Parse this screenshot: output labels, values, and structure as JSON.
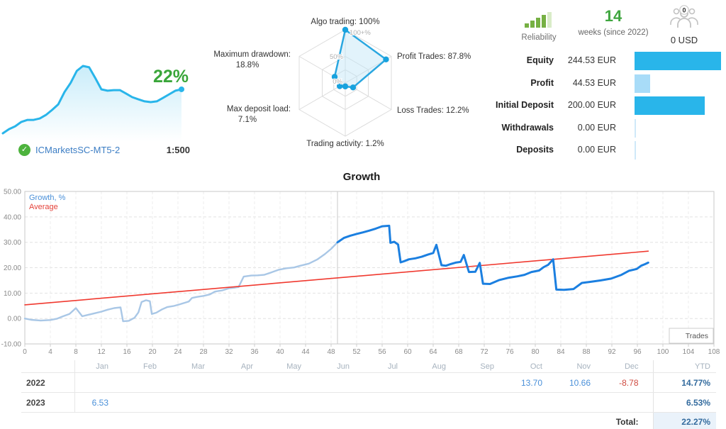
{
  "account": {
    "gain": "22%",
    "name": "ICMarketsSC-MT5-2",
    "leverage": "1:500"
  },
  "reliability": {
    "label": "Reliability"
  },
  "weeks": {
    "value": "14",
    "caption": "weeks (since 2022)"
  },
  "investors": {
    "count": "0",
    "amount": "0 USD"
  },
  "balances": {
    "rows": [
      {
        "label": "Equity",
        "value": "244.53 EUR",
        "amount": 244.53,
        "bar_color": "#29b5ea"
      },
      {
        "label": "Profit",
        "value": "44.53 EUR",
        "amount": 44.53,
        "bar_color": "#a8dcf8"
      },
      {
        "label": "Initial Deposit",
        "value": "200.00 EUR",
        "amount": 200.0,
        "bar_color": "#29b5ea"
      },
      {
        "label": "Withdrawals",
        "value": "0.00 EUR",
        "amount": 0,
        "bar_color": "#cfe9f9"
      },
      {
        "label": "Deposits",
        "value": "0.00 EUR",
        "amount": 0,
        "bar_color": "#cfe9f9"
      }
    ]
  },
  "chart_data": [
    {
      "type": "line",
      "title": "Growth",
      "xlabel": "Trades",
      "ylabel": "Growth, %",
      "xlim": [
        0,
        108
      ],
      "ylim": [
        -10,
        50
      ],
      "x_tick_step": 4,
      "y_tick_step": 10,
      "y_tick_labels": [
        "50.00",
        "40.00",
        "30.00",
        "20.00",
        "10.00",
        "0.00",
        "-10.00"
      ],
      "legend": [
        {
          "label": "Growth, %",
          "color": "#4a90d9"
        },
        {
          "label": "Average",
          "color": "#e4423a"
        }
      ],
      "year_divider_x": 49,
      "grid": true,
      "series": [
        {
          "name": "Growth 2022, %",
          "color": "#a9c7e6",
          "width": 2.4,
          "points": [
            [
              0,
              0
            ],
            [
              1,
              -0.5
            ],
            [
              2.5,
              -0.8
            ],
            [
              4,
              -0.6
            ],
            [
              5,
              -0.1
            ],
            [
              6,
              0.9
            ],
            [
              7,
              1.8
            ],
            [
              8,
              4.1
            ],
            [
              9,
              0.9
            ],
            [
              10,
              1.5
            ],
            [
              11,
              2.1
            ],
            [
              12,
              2.7
            ],
            [
              13,
              3.5
            ],
            [
              14,
              4.1
            ],
            [
              15,
              4.4
            ],
            [
              15.4,
              -1.1
            ],
            [
              16.3,
              -0.9
            ],
            [
              17.2,
              0.3
            ],
            [
              17.8,
              2.4
            ],
            [
              18.3,
              6.5
            ],
            [
              19,
              7.2
            ],
            [
              19.6,
              6.8
            ],
            [
              19.9,
              1.8
            ],
            [
              20.6,
              2.3
            ],
            [
              21.5,
              3.6
            ],
            [
              22.3,
              4.5
            ],
            [
              23.3,
              4.9
            ],
            [
              24.3,
              5.6
            ],
            [
              25.2,
              6.3
            ],
            [
              25.7,
              6.7
            ],
            [
              26.2,
              8.1
            ],
            [
              27,
              8.5
            ],
            [
              28,
              8.9
            ],
            [
              29,
              9.5
            ],
            [
              29.8,
              10.6
            ],
            [
              31,
              11.1
            ],
            [
              32,
              11.9
            ],
            [
              33,
              12.2
            ],
            [
              33.5,
              12.4
            ],
            [
              34.3,
              16.5
            ],
            [
              35.5,
              16.9
            ],
            [
              36.5,
              17.0
            ],
            [
              37.5,
              17.2
            ],
            [
              38.6,
              18.1
            ],
            [
              39.8,
              19.2
            ],
            [
              41,
              19.8
            ],
            [
              42.2,
              20.1
            ],
            [
              43.2,
              20.8
            ],
            [
              44.5,
              21.6
            ],
            [
              45.8,
              23.2
            ],
            [
              47,
              25.3
            ],
            [
              48,
              27.4
            ],
            [
              49,
              30.0
            ]
          ]
        },
        {
          "name": "Growth 2023, %",
          "color": "#1b7fe0",
          "width": 3,
          "points": [
            [
              49,
              30.0
            ],
            [
              50,
              31.7
            ],
            [
              51,
              32.6
            ],
            [
              52,
              33.3
            ],
            [
              53,
              33.9
            ],
            [
              54,
              34.6
            ],
            [
              55,
              35.4
            ],
            [
              56,
              36.3
            ],
            [
              57.1,
              36.5
            ],
            [
              57.3,
              29.8
            ],
            [
              57.9,
              30.2
            ],
            [
              58.5,
              29.1
            ],
            [
              58.9,
              22.1
            ],
            [
              59.5,
              22.6
            ],
            [
              60.2,
              23.3
            ],
            [
              61.2,
              23.7
            ],
            [
              62.2,
              24.3
            ],
            [
              63.2,
              25.2
            ],
            [
              64,
              25.8
            ],
            [
              64.5,
              29.0
            ],
            [
              65.3,
              21.0
            ],
            [
              66,
              20.8
            ],
            [
              66.7,
              21.4
            ],
            [
              67.5,
              22.0
            ],
            [
              68.3,
              22.3
            ],
            [
              68.8,
              25.0
            ],
            [
              69.6,
              18.3
            ],
            [
              70.6,
              18.4
            ],
            [
              71.3,
              21.9
            ],
            [
              71.8,
              13.7
            ],
            [
              72.9,
              13.6
            ],
            [
              74.3,
              15.1
            ],
            [
              75.7,
              16.0
            ],
            [
              77.2,
              16.6
            ],
            [
              78.3,
              17.2
            ],
            [
              79.4,
              18.3
            ],
            [
              80.6,
              18.9
            ],
            [
              81.3,
              20.2
            ],
            [
              82,
              21.1
            ],
            [
              82.8,
              23.3
            ],
            [
              83.3,
              11.4
            ],
            [
              84.5,
              11.3
            ],
            [
              86,
              11.6
            ],
            [
              87.3,
              14.0
            ],
            [
              88.5,
              14.4
            ],
            [
              90.2,
              15.0
            ],
            [
              91.9,
              15.7
            ],
            [
              93.5,
              17.2
            ],
            [
              94.7,
              18.8
            ],
            [
              95.9,
              19.5
            ],
            [
              96.6,
              20.8
            ],
            [
              97.2,
              21.4
            ],
            [
              97.7,
              22.0
            ]
          ]
        },
        {
          "name": "Average",
          "color": "#f0392f",
          "width": 1.6,
          "points": [
            [
              0,
              5.4
            ],
            [
              97.7,
              26.5
            ]
          ]
        }
      ]
    },
    {
      "type": "radar",
      "max": 100,
      "ring_scales": [
        1,
        0.5,
        0.25
      ],
      "rings": [
        {
          "label": "100+%"
        },
        {
          "label": "50%"
        },
        {
          "label": "0%"
        }
      ],
      "axes": [
        {
          "name": "Algo trading",
          "value": 100,
          "line1": "Algo trading: 100%",
          "line2": ""
        },
        {
          "name": "Profit Trades",
          "value": 87.8,
          "line1": "Profit Trades: 87.8%",
          "line2": ""
        },
        {
          "name": "Loss Trades",
          "value": 12.2,
          "line1": "Loss Trades: 12.2%",
          "line2": ""
        },
        {
          "name": "Trading activity",
          "value": 1.2,
          "line1": "Trading activity: 1.2%",
          "line2": ""
        },
        {
          "name": "Max deposit load",
          "value": 7.1,
          "line1": "Max deposit load:",
          "line2": "7.1%"
        },
        {
          "name": "Maximum drawdown",
          "value": 18.8,
          "line1": "Maximum drawdown:",
          "line2": "18.8%"
        }
      ],
      "stroke_color": "#2aa7e0",
      "fill_color": "#bfe4f6"
    },
    {
      "type": "line",
      "name": "account-growth-sparkline",
      "unit": "%",
      "end_label": "22%",
      "line_color": "#29b5ea",
      "values": [
        0,
        2.1,
        3.5,
        5.7,
        6.7,
        6.7,
        7.4,
        9.2,
        11.7,
        14.5,
        20.6,
        25.2,
        31.2,
        33.7,
        33,
        27.7,
        22,
        21.3,
        21.6,
        21.6,
        19.9,
        18.1,
        17,
        16,
        15.6,
        16,
        17.7,
        19.5,
        21.3,
        22
      ]
    }
  ],
  "monthly_table": {
    "columns": [
      "",
      "Jan",
      "Feb",
      "Mar",
      "Apr",
      "May",
      "Jun",
      "Jul",
      "Aug",
      "Sep",
      "Oct",
      "Nov",
      "Dec",
      "YTD"
    ],
    "rows": [
      {
        "year": "2022",
        "values": {
          "Oct": "13.70",
          "Nov": "10.66",
          "Dec": "-8.78"
        },
        "ytd": "14.77%"
      },
      {
        "year": "2023",
        "values": {
          "Jan": "6.53"
        },
        "ytd": "6.53%"
      }
    ],
    "total_label": "Total:",
    "total_ytd": "22.27%"
  }
}
